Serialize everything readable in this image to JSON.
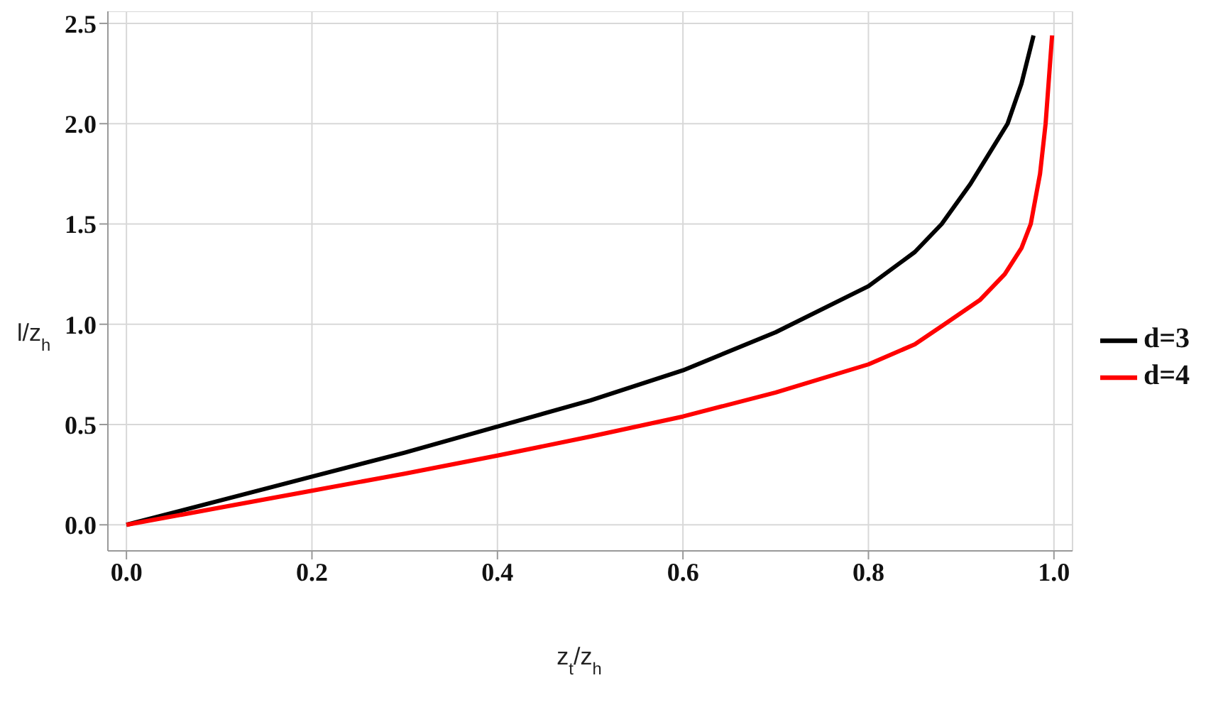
{
  "chart_data": {
    "type": "line",
    "xlabel": "z$_{t}$/z$_{h}$",
    "ylabel": "l/z$_{h}$",
    "xlim": [
      -0.02,
      1.02
    ],
    "ylim": [
      -0.13,
      2.56
    ],
    "xticks": [
      {
        "value": 0,
        "label": "0.0"
      },
      0.2,
      0.4,
      0.6,
      0.8,
      {
        "value": 1,
        "label": "1.0"
      }
    ],
    "yticks": [
      {
        "value": 0,
        "label": "0.0"
      },
      0.5,
      {
        "value": 1,
        "label": "1.0"
      },
      1.5,
      {
        "value": 2,
        "label": "2.0"
      },
      2.5
    ],
    "grid": true,
    "legend": "right",
    "marker": "none",
    "line_style": "solid",
    "series": [
      {
        "name": "d=3",
        "color": "#000000",
        "x": [
          0,
          0.1,
          0.2,
          0.3,
          0.4,
          0.5,
          0.6,
          0.7,
          0.8,
          0.85,
          0.879,
          0.91,
          0.93,
          0.95,
          0.965,
          0.978
        ],
        "values": [
          0,
          0.12,
          0.24,
          0.36,
          0.49,
          0.62,
          0.77,
          0.96,
          1.19,
          1.36,
          1.5,
          1.7,
          1.85,
          2.0,
          2.2,
          2.44
        ]
      },
      {
        "name": "d=4",
        "color": "#ff0000",
        "x": [
          0,
          0.1,
          0.2,
          0.3,
          0.4,
          0.5,
          0.6,
          0.7,
          0.8,
          0.85,
          0.882,
          0.92,
          0.947,
          0.965,
          0.975,
          0.985,
          0.991,
          0.998
        ],
        "values": [
          0,
          0.085,
          0.17,
          0.255,
          0.345,
          0.44,
          0.54,
          0.66,
          0.8,
          0.9,
          1.0,
          1.12,
          1.25,
          1.38,
          1.5,
          1.75,
          2.0,
          2.44
        ]
      }
    ]
  }
}
